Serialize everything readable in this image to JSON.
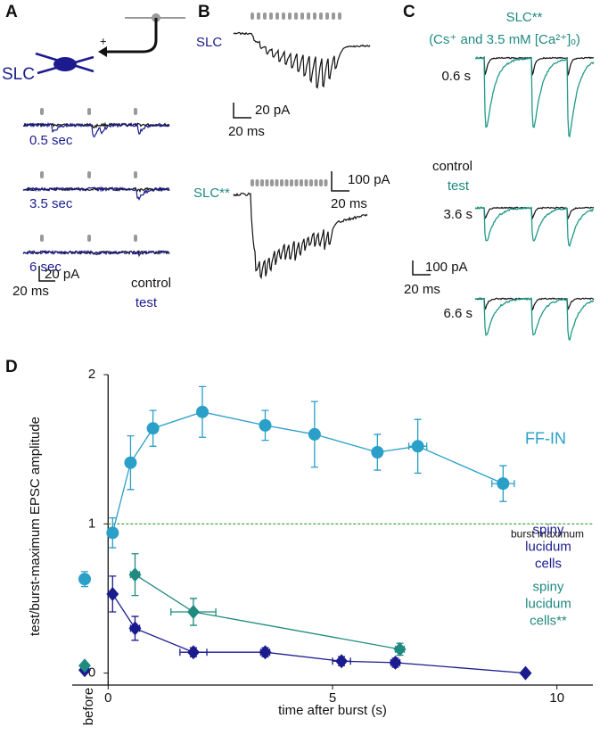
{
  "panels": {
    "a": {
      "label": "A",
      "cell": "SLC",
      "sign": "+",
      "intervals": [
        "0.5 sec",
        "3.5 sec",
        "6 sec"
      ],
      "scale_y": "20 pA",
      "scale_x": "20 ms",
      "control": "control",
      "test": "test"
    },
    "b": {
      "label": "B",
      "cell": "SLC",
      "scale_y": "20 pA",
      "scale_x": "20 ms",
      "cell2": "SLC**",
      "scale2_y": "100 pA",
      "scale2_x": "20 ms"
    },
    "c": {
      "label": "C",
      "cell": "SLC**",
      "condition": "(Cs⁺ and 3.5 mM [Ca²⁺]ₒ)",
      "intervals": [
        "0.6 s",
        "3.6 s",
        "6.6 s"
      ],
      "control": "control",
      "test": "test",
      "scale_y": "100 pA",
      "scale_x": "20 ms"
    }
  },
  "chart_data": {
    "type": "line",
    "panel_label": "D",
    "xlabel": "time after burst (s)",
    "ylabel": "test/burst-maximum EPSC amplitude",
    "before_label": "before",
    "xlim": [
      -0.8,
      10.8
    ],
    "ylim": [
      -0.08,
      2
    ],
    "xticks": [
      0,
      5,
      10
    ],
    "yticks": [
      0,
      1,
      2
    ],
    "reference_line": {
      "value": 1,
      "label": "burst maximum",
      "color": "#2e9e2e"
    },
    "series": [
      {
        "name": "FF-IN",
        "color": "#2a9fc8",
        "marker": "circle",
        "x": [
          0.1,
          0.5,
          1.0,
          2.1,
          3.5,
          4.6,
          6.0,
          6.9,
          8.8
        ],
        "values": [
          0.94,
          1.41,
          1.64,
          1.75,
          1.66,
          1.6,
          1.48,
          1.52,
          1.27
        ],
        "errors": [
          0.1,
          0.18,
          0.12,
          0.17,
          0.1,
          0.22,
          0.12,
          0.18,
          0.12
        ],
        "xerrors": [
          0.05,
          0.05,
          0.05,
          0.05,
          0.05,
          0.05,
          0.05,
          0.2,
          0.25
        ],
        "before": 0.63,
        "before_error": 0.05
      },
      {
        "name": "spiny\nlucidum cells",
        "color": "#1b1b8f",
        "marker": "diamond",
        "x": [
          0.1,
          0.6,
          1.9,
          3.5,
          5.2,
          6.4,
          9.3
        ],
        "values": [
          0.53,
          0.3,
          0.14,
          0.14,
          0.08,
          0.07,
          0
        ],
        "errors": [
          0.12,
          0.08,
          0.03,
          0.03,
          0.03,
          0.03,
          0
        ],
        "xerrors": [
          0.05,
          0.1,
          0.3,
          0.1,
          0.2,
          0.1,
          0
        ],
        "before": 0.02,
        "before_error": 0.01
      },
      {
        "name": "spiny lucidum\ncells**",
        "color": "#1f8a80",
        "marker": "diamond",
        "x": [
          0.6,
          1.9,
          6.5
        ],
        "values": [
          0.66,
          0.41,
          0.16
        ],
        "errors": [
          0.14,
          0.09,
          0.04
        ],
        "xerrors": [
          0.1,
          0.5,
          0.1
        ],
        "before": 0.05,
        "before_error": 0.01
      }
    ]
  }
}
